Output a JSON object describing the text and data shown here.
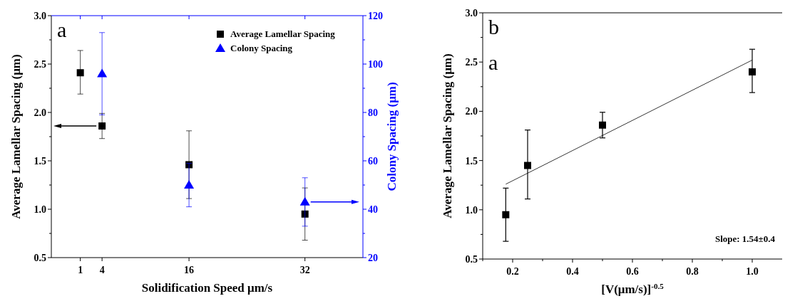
{
  "chart_data": [
    {
      "type": "scatter",
      "xlabel": "Solidification Speed μm/s",
      "ylabel": "Average Lamellar Spacing (μm)",
      "y2label": "Colony Spacing (μm)",
      "annotations": [
        "a"
      ],
      "legend": "top right",
      "grid": false,
      "xlim": [
        -3,
        40
      ],
      "xticks": [
        1,
        4,
        16,
        32
      ],
      "ylim": [
        0.5,
        3.0
      ],
      "yticks": [
        0.5,
        {
          "value": 0.75,
          "label": null
        },
        {
          "value": 1,
          "label": "1.0"
        },
        {
          "value": 1.25,
          "label": null
        },
        1.5,
        {
          "value": 1.75,
          "label": null
        },
        {
          "value": 2,
          "label": "2.0"
        },
        {
          "value": 2.25,
          "label": null
        },
        2.5,
        {
          "value": 2.75,
          "label": null
        },
        {
          "value": 3,
          "label": "3.0"
        }
      ],
      "y2lim": [
        20,
        120
      ],
      "y2ticks": [
        20,
        {
          "value": 30,
          "label": null
        },
        40,
        {
          "value": 50,
          "label": null
        },
        60,
        {
          "value": 70,
          "label": null
        },
        80,
        {
          "value": 90,
          "label": null
        },
        100,
        {
          "value": 110,
          "label": null
        },
        120
      ],
      "series": [
        {
          "name": "Average Lamellar Spacing",
          "color": "#000000",
          "marker": "square",
          "x": [
            1,
            4,
            16,
            32
          ],
          "values": [
            2.41,
            1.86,
            1.46,
            0.95
          ],
          "errors": [
            [
              2.19,
              2.64
            ],
            [
              1.73,
              1.99
            ],
            [
              1.11,
              1.81
            ],
            [
              0.68,
              1.22
            ]
          ]
        },
        {
          "name": "Colony Spacing",
          "color": "#0000ff",
          "marker": "triangle",
          "axis": "y2",
          "x": [
            4,
            16,
            32
          ],
          "values": [
            96,
            50,
            43
          ],
          "errors": [
            [
              79,
              113
            ],
            [
              41,
              59
            ],
            [
              33,
              53
            ]
          ]
        }
      ]
    },
    {
      "type": "scatter",
      "xlabel": "[V(μm/s)]$^{-0.5}$",
      "ylabel": "Average Lamellar Spacing (μm)",
      "annotations": [
        "b",
        "a",
        "Slope: 1.54±0.4"
      ],
      "legend": false,
      "grid": false,
      "xlim": [
        0.1,
        1.1
      ],
      "xticks": [
        {
          "value": 0.1,
          "label": null
        },
        0.2,
        {
          "value": 0.3,
          "label": null
        },
        0.4,
        {
          "value": 0.5,
          "label": null
        },
        0.6,
        {
          "value": 0.7,
          "label": null
        },
        0.8,
        {
          "value": 0.9,
          "label": null
        },
        {
          "value": 1,
          "label": "1.0"
        }
      ],
      "ylim": [
        0.5,
        3.0
      ],
      "yticks": [
        0.5,
        {
          "value": 0.75,
          "label": null
        },
        {
          "value": 1,
          "label": "1.0"
        },
        {
          "value": 1.25,
          "label": null
        },
        1.5,
        {
          "value": 1.75,
          "label": null
        },
        {
          "value": 2,
          "label": "2.0"
        },
        {
          "value": 2.25,
          "label": null
        },
        2.5,
        {
          "value": 2.75,
          "label": null
        },
        {
          "value": 3,
          "label": "3.0"
        }
      ],
      "series": [
        {
          "color": "#000000",
          "marker": "square",
          "x": [
            0.177,
            0.25,
            0.5,
            1.0
          ],
          "values": [
            0.95,
            1.45,
            1.86,
            2.4
          ],
          "errors": [
            [
              0.68,
              1.22
            ],
            [
              1.11,
              1.81
            ],
            [
              1.73,
              1.99
            ],
            [
              2.19,
              2.63
            ]
          ]
        },
        {
          "type": "line",
          "color": "#000000",
          "marker": "none",
          "line_style": "solid",
          "x": [
            0.177,
            1.0
          ],
          "values": [
            1.26,
            2.52
          ]
        }
      ]
    }
  ]
}
